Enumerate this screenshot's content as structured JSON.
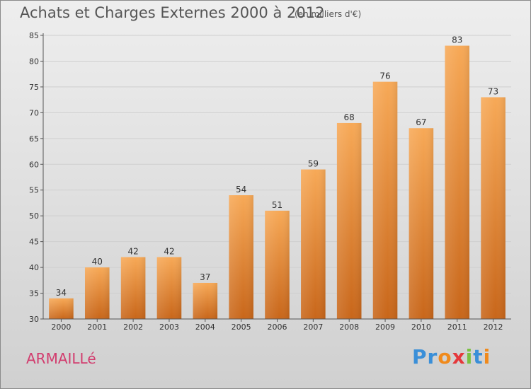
{
  "chart_data": {
    "type": "bar",
    "title": "Achats et Charges Externes 2000 à 2012",
    "subtitle": "(en milliers d'€)",
    "categories": [
      "2000",
      "2001",
      "2002",
      "2003",
      "2004",
      "2005",
      "2006",
      "2007",
      "2008",
      "2009",
      "2010",
      "2011",
      "2012"
    ],
    "values": [
      34,
      40,
      42,
      42,
      37,
      54,
      51,
      59,
      68,
      76,
      67,
      83,
      73
    ],
    "ylim": [
      30,
      85
    ],
    "yticks": [
      30,
      35,
      40,
      45,
      50,
      55,
      60,
      65,
      70,
      75,
      80,
      85
    ],
    "grid": true,
    "bar_color_top": "#f7a957",
    "bar_color_bottom": "#c8661a"
  },
  "footer": {
    "commune": "ARMAILLé",
    "logo_letters": [
      "P",
      "r",
      "o",
      "x",
      "i",
      "t",
      "i"
    ],
    "logo_colors": [
      "#3a8fd8",
      "#3a8fd8",
      "#f08a1c",
      "#e5383b",
      "#7ac142",
      "#3a8fd8",
      "#f08a1c"
    ]
  }
}
